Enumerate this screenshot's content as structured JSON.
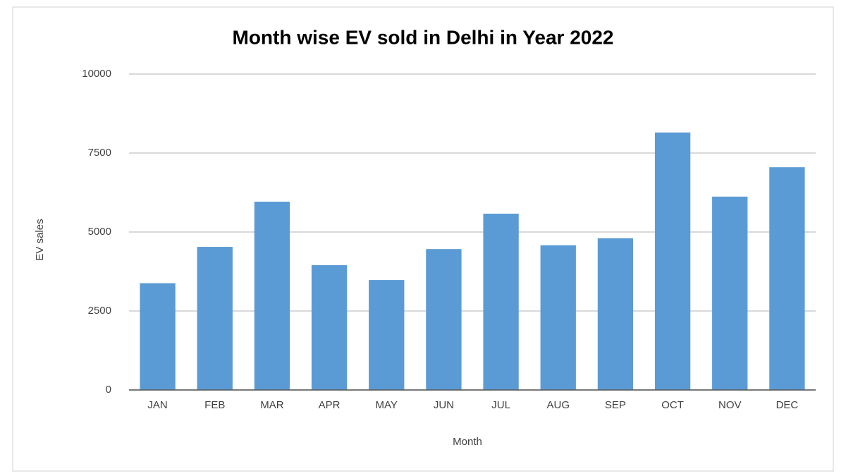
{
  "chart_data": {
    "type": "bar",
    "title": "Month wise EV sold in Delhi in Year 2022",
    "x_label": "Month",
    "y_label": "EV sales",
    "categories": [
      "JAN",
      "FEB",
      "MAR",
      "APR",
      "MAY",
      "JUN",
      "JUL",
      "AUG",
      "SEP",
      "OCT",
      "NOV",
      "DEC"
    ],
    "values": [
      3380,
      4530,
      5960,
      3950,
      3480,
      4460,
      5580,
      4580,
      4800,
      8150,
      6120,
      7050
    ],
    "color": "#5b9bd5",
    "ylim": [
      0,
      10000
    ],
    "yticks": [
      0,
      2500,
      5000,
      7500,
      10000
    ],
    "grid": true
  }
}
